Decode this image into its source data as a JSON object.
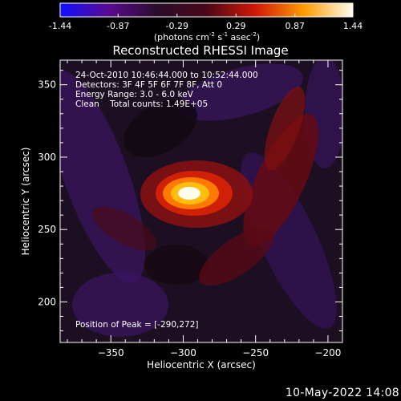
{
  "colorbar": {
    "tick_labels": [
      "-1.44",
      "-0.87",
      "-0.29",
      "0.29",
      "0.87",
      "1.44"
    ],
    "min": -1.44,
    "max": 1.44,
    "units_prefix": "(photons cm",
    "units_exp1": "-2",
    "units_mid": " s",
    "units_exp2": "-1",
    "units_mid2": " asec",
    "units_exp3": "-2",
    "units_suffix": ")",
    "stops": [
      "#1010ff",
      "#5a0a90",
      "#2a0c2a",
      "#4a0818",
      "#d01808",
      "#ff9c00",
      "#fffff0"
    ]
  },
  "chart_data": {
    "type": "heatmap",
    "title": "Reconstructed RHESSI Image",
    "xlabel": "Heliocentric X (arcsec)",
    "ylabel": "Heliocentric Y (arcsec)",
    "xlim": [
      -385,
      -190
    ],
    "ylim": [
      172,
      367
    ],
    "xticks": [
      -350,
      -300,
      -250,
      -200
    ],
    "yticks": [
      200,
      250,
      300,
      350
    ],
    "xtick_labels": [
      "−350",
      "−300",
      "−250",
      "−200"
    ],
    "ytick_labels": [
      "200",
      "250",
      "300",
      "350"
    ],
    "peak_position": [
      -290,
      272
    ],
    "annotations": [
      "24-Oct-2010 10:46:44.000 to 10:52:44.000",
      "Detectors: 3F 4F 5F 6F 7F 8F, Att 0",
      "Energy Range: 3.0 - 6.0 keV",
      "Clean    Total counts: 1.49E+05"
    ],
    "peak_label": "Position of Peak = [-290,272]"
  },
  "footer": {
    "date": "10-May-2022 14:08"
  }
}
